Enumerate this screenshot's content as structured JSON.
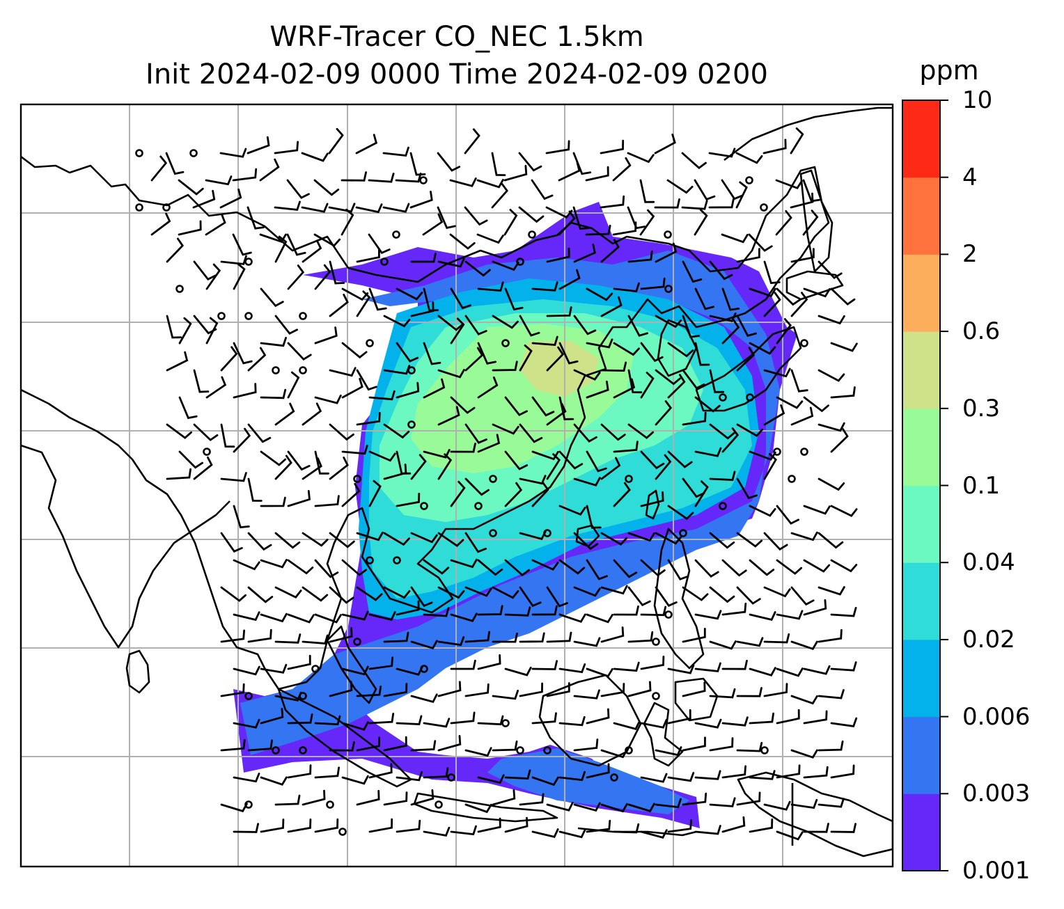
{
  "title": {
    "line1": "WRF-Tracer CO_NEC 1.5km",
    "line2": "Init 2024-02-09 0000 Time 2024-02-09 0200"
  },
  "colorbar": {
    "unit": "ppm",
    "levels": [
      "0.001",
      "0.003",
      "0.006",
      "0.02",
      "0.04",
      "0.1",
      "0.3",
      "0.6",
      "2",
      "4",
      "10"
    ],
    "colors": [
      "#6528f8",
      "#3476f1",
      "#03b1eb",
      "#30dcd7",
      "#6bf9c1",
      "#99fb98",
      "#cee389",
      "#fcae5d",
      "#fe723e",
      "#fe2a18"
    ]
  },
  "map": {
    "background": "#ffffff",
    "gridline_color": "#b0b0b0",
    "coastline_color": "#000000",
    "wind_barb_color": "#000000"
  }
}
